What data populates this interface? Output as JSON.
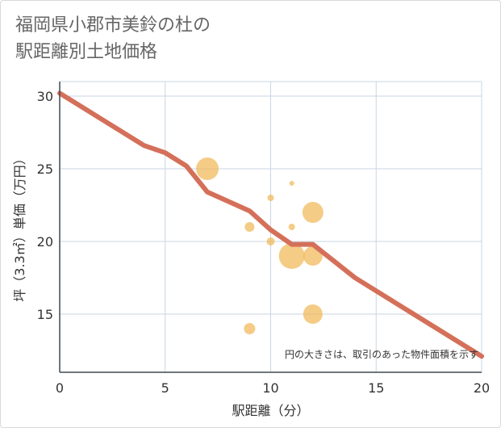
{
  "title_line1": "福岡県小郡市美鈴の杜の",
  "title_line2": "駅距離別土地価格",
  "chart_data": {
    "type": "scatter",
    "xlabel": "駅距離（分）",
    "ylabel": "坪（3.3㎡）単価（万円）",
    "xlim": [
      0,
      20
    ],
    "ylim": [
      11,
      31
    ],
    "xticks": [
      0,
      5,
      10,
      15,
      20
    ],
    "yticks": [
      15,
      20,
      25,
      30
    ],
    "grid": true,
    "note": "円の大きさは、取引のあった物件面積を示す",
    "colors": {
      "bubble": "#f0b857",
      "line": "#d4705a",
      "grid": "#c9d6e3",
      "axis": "#3f4a52"
    },
    "bubbles": [
      {
        "x": 7,
        "y": 25,
        "size": 14
      },
      {
        "x": 9,
        "y": 21,
        "size": 6
      },
      {
        "x": 9,
        "y": 14,
        "size": 7
      },
      {
        "x": 10,
        "y": 23,
        "size": 4
      },
      {
        "x": 10,
        "y": 20,
        "size": 5
      },
      {
        "x": 11,
        "y": 24,
        "size": 3
      },
      {
        "x": 11,
        "y": 21,
        "size": 4
      },
      {
        "x": 11,
        "y": 19,
        "size": 16
      },
      {
        "x": 12,
        "y": 22,
        "size": 13
      },
      {
        "x": 12,
        "y": 19,
        "size": 12
      },
      {
        "x": 12,
        "y": 15,
        "size": 12
      }
    ],
    "trend": {
      "x": [
        0,
        4,
        5,
        6,
        7,
        9,
        10,
        11,
        12,
        14,
        20
      ],
      "y": [
        30.2,
        26.6,
        26.1,
        25.2,
        23.4,
        22.1,
        20.8,
        19.8,
        19.8,
        17.5,
        12.1
      ]
    }
  }
}
